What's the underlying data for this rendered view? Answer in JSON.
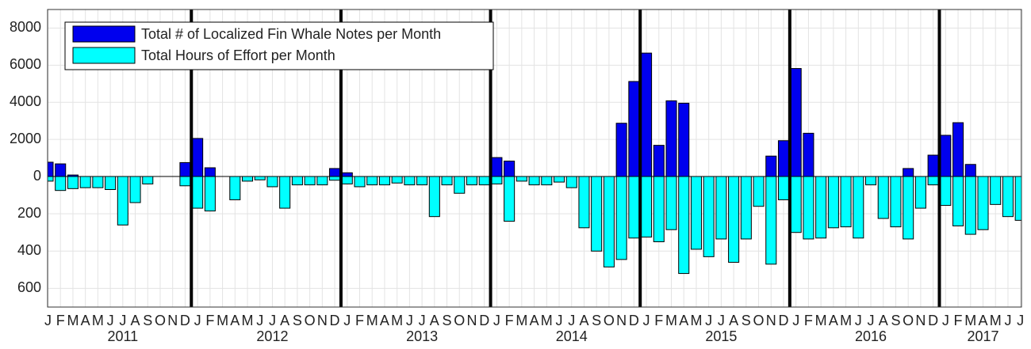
{
  "chart_data": {
    "type": "bar",
    "categories": [
      "J",
      "F",
      "M",
      "A",
      "M",
      "J",
      "J",
      "A",
      "S",
      "O",
      "N",
      "D",
      "J",
      "F",
      "M",
      "A",
      "M",
      "J",
      "J",
      "A",
      "S",
      "O",
      "N",
      "D",
      "J",
      "F",
      "M",
      "A",
      "M",
      "J",
      "J",
      "A",
      "S",
      "O",
      "N",
      "D",
      "J",
      "F",
      "M",
      "A",
      "M",
      "J",
      "J",
      "A",
      "S",
      "O",
      "N",
      "D",
      "J",
      "F",
      "M",
      "A",
      "M",
      "J",
      "J",
      "A",
      "S",
      "O",
      "N",
      "D",
      "J",
      "F",
      "M",
      "A",
      "M",
      "J",
      "J",
      "A",
      "S",
      "O",
      "N",
      "D",
      "J",
      "F",
      "M",
      "A",
      "M",
      "J",
      "J"
    ],
    "years": [
      "2011",
      "2012",
      "2013",
      "2014",
      "2015",
      "2016",
      "2017"
    ],
    "series": [
      {
        "name": "Total # of Localized Fin Whale Notes per Month",
        "color": "#0000ee",
        "values": [
          770,
          680,
          80,
          0,
          0,
          0,
          0,
          0,
          0,
          0,
          0,
          750,
          2050,
          470,
          0,
          0,
          0,
          0,
          0,
          0,
          0,
          0,
          0,
          430,
          200,
          0,
          0,
          0,
          0,
          0,
          0,
          0,
          0,
          0,
          0,
          0,
          1020,
          830,
          0,
          0,
          0,
          0,
          0,
          0,
          0,
          0,
          2870,
          5120,
          6650,
          1680,
          4080,
          3950,
          0,
          0,
          0,
          0,
          0,
          0,
          1100,
          1930,
          5820,
          2330,
          0,
          0,
          0,
          0,
          0,
          0,
          0,
          430,
          0,
          1150,
          2220,
          2900,
          650,
          0,
          0,
          0,
          0
        ]
      },
      {
        "name": "Total Hours of Effort per Month",
        "color": "#00ffff",
        "axis": "y2",
        "values": [
          25,
          75,
          65,
          60,
          60,
          70,
          260,
          140,
          40,
          0,
          0,
          50,
          170,
          185,
          0,
          125,
          25,
          18,
          55,
          170,
          45,
          45,
          45,
          20,
          40,
          55,
          45,
          45,
          35,
          45,
          45,
          215,
          45,
          90,
          45,
          45,
          40,
          240,
          25,
          45,
          45,
          30,
          60,
          275,
          400,
          485,
          445,
          330,
          325,
          350,
          285,
          520,
          390,
          430,
          335,
          460,
          335,
          160,
          470,
          125,
          300,
          335,
          330,
          275,
          270,
          330,
          45,
          225,
          270,
          335,
          170,
          45,
          155,
          265,
          310,
          285,
          150,
          215,
          235
        ]
      }
    ],
    "ylim": [
      0,
      9000
    ],
    "yticks": [
      0,
      2000,
      4000,
      6000,
      8000
    ],
    "y2lim": [
      0,
      700
    ],
    "y2ticks": [
      200,
      400,
      600
    ],
    "grid": true,
    "legend": "upper left"
  }
}
